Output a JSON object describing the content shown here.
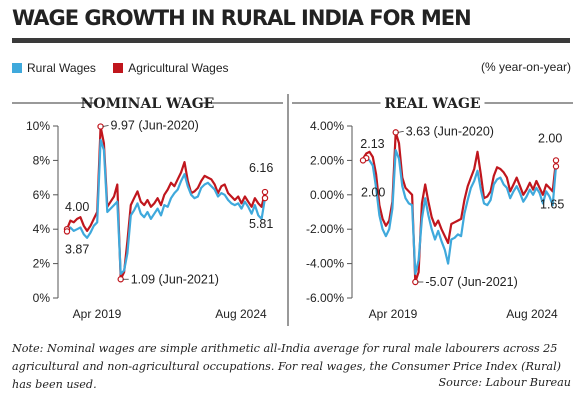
{
  "title": "WAGE GROWTH IN RURAL INDIA FOR MEN",
  "legend": [
    {
      "label": "Rural Wages",
      "color": "#3fa9dc"
    },
    {
      "label": "Agricultural Wages",
      "color": "#c0161d"
    }
  ],
  "unit": "(% year-on-year)",
  "note": "Note: Nominal wages are simple arithmetic all-India average for rural male labourers across 25 agricultural and non-agricultural occupations. For real wages, the Consumer Price Index (Rural) has been used.",
  "source": "Source: Labour Bureau",
  "chart_data": [
    {
      "type": "line",
      "title": "NOMINAL WAGE",
      "xticks": [
        "Apr 2019",
        "Aug 2024"
      ],
      "yticks": [
        "0%",
        "2%",
        "4%",
        "6%",
        "8%",
        "10%"
      ],
      "ylim": [
        0,
        10
      ],
      "grid": false,
      "series": [
        {
          "name": "Rural Wages",
          "color": "#3fa9dc",
          "values": [
            3.87,
            4.1,
            3.9,
            4.0,
            4.1,
            3.7,
            3.5,
            3.8,
            4.2,
            4.4,
            9.2,
            8.6,
            5.0,
            5.2,
            5.4,
            5.6,
            1.4,
            1.6,
            2.6,
            4.8,
            5.1,
            5.5,
            4.9,
            4.7,
            5.0,
            4.6,
            4.9,
            5.2,
            4.8,
            5.4,
            5.3,
            5.8,
            6.1,
            6.3,
            6.8,
            7.2,
            6.5,
            6.0,
            5.8,
            5.9,
            6.4,
            6.6,
            6.7,
            6.5,
            6.3,
            5.9,
            6.1,
            6.0,
            5.7,
            5.5,
            5.4,
            5.5,
            5.2,
            5.6,
            5.3,
            4.9,
            5.4,
            4.8,
            4.6,
            5.81
          ]
        },
        {
          "name": "Agricultural Wages",
          "color": "#c0161d",
          "values": [
            4.0,
            4.5,
            4.4,
            4.6,
            4.7,
            4.2,
            3.9,
            4.2,
            4.6,
            5.0,
            9.97,
            9.0,
            5.3,
            5.6,
            5.9,
            6.6,
            1.09,
            1.5,
            3.3,
            5.4,
            5.8,
            6.2,
            5.6,
            5.4,
            5.7,
            5.3,
            5.5,
            5.8,
            5.4,
            6.0,
            6.3,
            6.7,
            6.5,
            6.9,
            7.3,
            7.9,
            6.8,
            6.1,
            6.2,
            6.4,
            6.8,
            7.1,
            7.0,
            6.9,
            6.6,
            6.1,
            6.5,
            6.6,
            6.1,
            5.9,
            5.7,
            5.9,
            5.5,
            5.9,
            5.6,
            5.3,
            5.8,
            5.5,
            5.3,
            6.16
          ]
        }
      ],
      "annotations": [
        {
          "text": "4.00"
        },
        {
          "text": "3.87"
        },
        {
          "text": "9.97 (Jun-2020)"
        },
        {
          "text": "1.09 (Jun-2021)"
        },
        {
          "text": "6.16"
        },
        {
          "text": "5.81"
        }
      ]
    },
    {
      "type": "line",
      "title": "REAL WAGE",
      "xticks": [
        "Apr 2019",
        "Aug 2024"
      ],
      "yticks": [
        "-6.00%",
        "-4.00%",
        "-2.00%",
        "0.00%",
        "2.00%",
        "4.00%"
      ],
      "ylim": [
        -6,
        4
      ],
      "grid": false,
      "series": [
        {
          "name": "Rural Wages",
          "color": "#3fa9dc",
          "values": [
            2.0,
            2.13,
            2.0,
            1.7,
            0.4,
            -1.2,
            -2.0,
            -2.4,
            -2.0,
            -0.8,
            2.6,
            2.1,
            0.5,
            -0.2,
            -0.5,
            -0.6,
            -4.6,
            -3.8,
            -1.4,
            -0.2,
            -1.2,
            -2.0,
            -2.6,
            -2.1,
            -2.7,
            -3.2,
            -4.0,
            -2.6,
            -2.5,
            -2.3,
            -2.4,
            -1.1,
            -0.3,
            0.4,
            0.8,
            1.4,
            0.3,
            -0.5,
            -0.6,
            -0.3,
            0.6,
            0.9,
            1.0,
            0.6,
            0.4,
            -0.2,
            0.2,
            0.5,
            0.1,
            -0.4,
            -0.1,
            0.3,
            0.0,
            0.4,
            0.1,
            -0.5,
            0.2,
            -0.1,
            -0.6,
            1.65
          ]
        },
        {
          "name": "Agricultural Wages",
          "color": "#c0161d",
          "values": [
            2.1,
            2.4,
            2.5,
            2.2,
            1.2,
            -0.6,
            -1.4,
            -1.8,
            -1.5,
            -0.4,
            3.63,
            3.0,
            1.0,
            0.4,
            0.2,
            0.0,
            -5.07,
            -4.5,
            -0.5,
            0.6,
            -0.4,
            -1.3,
            -1.8,
            -1.5,
            -2.0,
            -2.4,
            -2.8,
            -1.7,
            -1.6,
            -1.5,
            -1.4,
            -0.3,
            0.5,
            1.0,
            1.5,
            2.5,
            1.2,
            -0.2,
            -0.1,
            0.2,
            1.1,
            1.6,
            1.5,
            1.3,
            1.0,
            0.2,
            0.6,
            1.0,
            0.5,
            0.0,
            0.3,
            0.7,
            0.3,
            0.8,
            0.4,
            0.0,
            0.6,
            0.4,
            0.2,
            2.0
          ]
        }
      ],
      "annotations": [
        {
          "text": "2.13"
        },
        {
          "text": "2.00"
        },
        {
          "text": "3.63 (Jun-2020)"
        },
        {
          "text": "-5.07 (Jun-2021)"
        },
        {
          "text": "2.00"
        },
        {
          "text": "1.65"
        }
      ]
    }
  ]
}
